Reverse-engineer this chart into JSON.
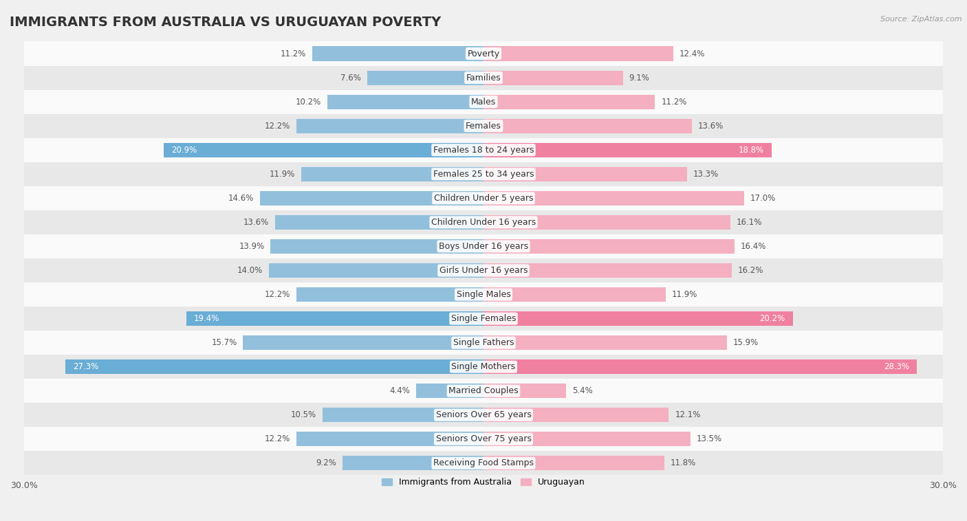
{
  "title": "IMMIGRANTS FROM AUSTRALIA VS URUGUAYAN POVERTY",
  "source": "Source: ZipAtlas.com",
  "categories": [
    "Poverty",
    "Families",
    "Males",
    "Females",
    "Females 18 to 24 years",
    "Females 25 to 34 years",
    "Children Under 5 years",
    "Children Under 16 years",
    "Boys Under 16 years",
    "Girls Under 16 years",
    "Single Males",
    "Single Females",
    "Single Fathers",
    "Single Mothers",
    "Married Couples",
    "Seniors Over 65 years",
    "Seniors Over 75 years",
    "Receiving Food Stamps"
  ],
  "left_values": [
    11.2,
    7.6,
    10.2,
    12.2,
    20.9,
    11.9,
    14.6,
    13.6,
    13.9,
    14.0,
    12.2,
    19.4,
    15.7,
    27.3,
    4.4,
    10.5,
    12.2,
    9.2
  ],
  "right_values": [
    12.4,
    9.1,
    11.2,
    13.6,
    18.8,
    13.3,
    17.0,
    16.1,
    16.4,
    16.2,
    11.9,
    20.2,
    15.9,
    28.3,
    5.4,
    12.1,
    13.5,
    11.8
  ],
  "left_color_normal": "#92c0dc",
  "left_color_highlight": "#6aadd5",
  "right_color_normal": "#f4afc0",
  "right_color_highlight": "#f080a0",
  "axis_max": 30.0,
  "background_color": "#f0f0f0",
  "row_color_even": "#fafafa",
  "row_color_odd": "#e8e8e8",
  "title_fontsize": 14,
  "label_fontsize": 9,
  "value_fontsize": 8.5,
  "legend_label_left": "Immigrants from Australia",
  "legend_label_right": "Uruguayan",
  "highlight_rows": [
    4,
    11,
    13
  ]
}
